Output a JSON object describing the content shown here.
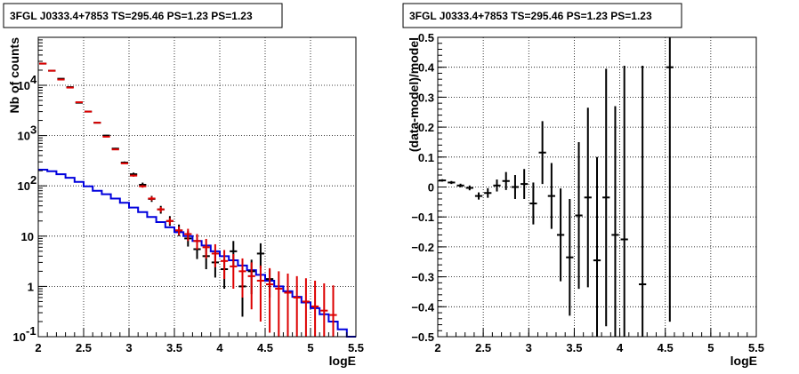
{
  "chart_data": [
    {
      "type": "scatter",
      "title": "3FGL J0333.4+7853 TS=295.46 PS=1.23 PS=1.23",
      "xlabel": "logE",
      "ylabel": "Nb of counts",
      "xlim": [
        2,
        5.5
      ],
      "ylim": [
        0.1,
        90000
      ],
      "yscale": "log",
      "grid": true,
      "x_ticks": [
        "2",
        "2.5",
        "3",
        "3.5",
        "4",
        "4.5",
        "5",
        "5.5"
      ],
      "y_ticks": [
        {
          "v": 0.1,
          "label": "10",
          "exp": "-1"
        },
        {
          "v": 1,
          "label": "1",
          "exp": ""
        },
        {
          "v": 10,
          "label": "10",
          "exp": ""
        },
        {
          "v": 100,
          "label": "10",
          "exp": "2"
        },
        {
          "v": 1000,
          "label": "10",
          "exp": "3"
        },
        {
          "v": 10000,
          "label": "10",
          "exp": "4"
        }
      ],
      "colors": {
        "data": "#000000",
        "model_points": "#dd0000",
        "model_histogram": "#0000dd"
      },
      "series": [
        {
          "style": "black-errorbars",
          "points": [
            {
              "x": 2.05,
              "y": 27000,
              "lo": 26700,
              "hi": 27300
            },
            {
              "x": 2.15,
              "y": 19500,
              "lo": 19200,
              "hi": 19800
            },
            {
              "x": 2.25,
              "y": 13500,
              "lo": 13300,
              "hi": 13700
            },
            {
              "x": 2.35,
              "y": 9200,
              "lo": 9050,
              "hi": 9350
            },
            {
              "x": 2.45,
              "y": 4500,
              "lo": 4420,
              "hi": 4580
            },
            {
              "x": 2.55,
              "y": 3000,
              "lo": 2940,
              "hi": 3060
            },
            {
              "x": 2.65,
              "y": 1800,
              "lo": 1760,
              "hi": 1840
            },
            {
              "x": 2.75,
              "y": 1000,
              "lo": 970,
              "hi": 1030
            },
            {
              "x": 2.85,
              "y": 550,
              "lo": 530,
              "hi": 570
            },
            {
              "x": 2.95,
              "y": 290,
              "lo": 275,
              "hi": 305
            },
            {
              "x": 3.05,
              "y": 170,
              "lo": 157,
              "hi": 183
            },
            {
              "x": 3.15,
              "y": 105,
              "lo": 95,
              "hi": 116
            },
            {
              "x": 3.25,
              "y": 55,
              "lo": 48,
              "hi": 63
            },
            {
              "x": 3.35,
              "y": 34,
              "lo": 28,
              "hi": 40
            },
            {
              "x": 3.45,
              "y": 20,
              "lo": 16,
              "hi": 25
            },
            {
              "x": 3.55,
              "y": 13,
              "lo": 10,
              "hi": 17
            },
            {
              "x": 3.65,
              "y": 9,
              "lo": 6.2,
              "hi": 12.5
            },
            {
              "x": 3.75,
              "y": 5.5,
              "lo": 3.5,
              "hi": 8.5
            },
            {
              "x": 3.85,
              "y": 4.0,
              "lo": 2.2,
              "hi": 6.5
            },
            {
              "x": 3.95,
              "y": 3.0,
              "lo": 1.5,
              "hi": 5.0
            },
            {
              "x": 4.05,
              "y": 2.2,
              "lo": 0.9,
              "hi": 3.6
            },
            {
              "x": 4.15,
              "y": 5.0,
              "lo": 2.6,
              "hi": 8.0
            },
            {
              "x": 4.25,
              "y": 1.0,
              "lo": 0.25,
              "hi": 2.2
            },
            {
              "x": 4.35,
              "y": 2.0,
              "lo": 0.7,
              "hi": 3.4
            },
            {
              "x": 4.45,
              "y": 4.5,
              "lo": 2.3,
              "hi": 7.2
            },
            {
              "x": 4.55,
              "y": 1.4,
              "lo": 0.6,
              "hi": 2.2
            }
          ]
        },
        {
          "style": "red-errorbars",
          "points": [
            {
              "x": 2.05,
              "y": 27000,
              "lo": 26800,
              "hi": 27200
            },
            {
              "x": 2.15,
              "y": 19500,
              "lo": 19300,
              "hi": 19700
            },
            {
              "x": 2.25,
              "y": 13000,
              "lo": 12900,
              "hi": 13100
            },
            {
              "x": 2.35,
              "y": 9000,
              "lo": 8900,
              "hi": 9100
            },
            {
              "x": 2.45,
              "y": 4600,
              "lo": 4550,
              "hi": 4650
            },
            {
              "x": 2.55,
              "y": 3000,
              "lo": 2960,
              "hi": 3040
            },
            {
              "x": 2.65,
              "y": 1800,
              "lo": 1780,
              "hi": 1820
            },
            {
              "x": 2.75,
              "y": 950,
              "lo": 935,
              "hi": 965
            },
            {
              "x": 2.85,
              "y": 530,
              "lo": 520,
              "hi": 540
            },
            {
              "x": 2.95,
              "y": 280,
              "lo": 272,
              "hi": 288
            },
            {
              "x": 3.05,
              "y": 160,
              "lo": 152,
              "hi": 168
            },
            {
              "x": 3.15,
              "y": 98,
              "lo": 92,
              "hi": 104
            },
            {
              "x": 3.25,
              "y": 56,
              "lo": 51,
              "hi": 61
            },
            {
              "x": 3.35,
              "y": 34,
              "lo": 30,
              "hi": 38
            },
            {
              "x": 3.45,
              "y": 20,
              "lo": 17,
              "hi": 23
            },
            {
              "x": 3.55,
              "y": 13,
              "lo": 10.5,
              "hi": 15.5
            },
            {
              "x": 3.65,
              "y": 11,
              "lo": 8,
              "hi": 14
            },
            {
              "x": 3.75,
              "y": 8,
              "lo": 5.4,
              "hi": 11
            },
            {
              "x": 3.85,
              "y": 6,
              "lo": 3.6,
              "hi": 8.8
            },
            {
              "x": 3.95,
              "y": 4.5,
              "lo": 2.4,
              "hi": 6.9
            },
            {
              "x": 4.05,
              "y": 3.2,
              "lo": 1.4,
              "hi": 5.3
            },
            {
              "x": 4.15,
              "y": 2.5,
              "lo": 0.9,
              "hi": 4.4
            },
            {
              "x": 4.25,
              "y": 2.0,
              "lo": 0.6,
              "hi": 3.6
            },
            {
              "x": 4.35,
              "y": 1.6,
              "lo": 0.35,
              "hi": 3.0
            },
            {
              "x": 4.45,
              "y": 1.3,
              "lo": 0.2,
              "hi": 2.6
            },
            {
              "x": 4.55,
              "y": 1.1,
              "lo": 0.12,
              "hi": 2.3
            },
            {
              "x": 4.65,
              "y": 0.9,
              "lo": 0.1,
              "hi": 2.0
            },
            {
              "x": 4.75,
              "y": 0.75,
              "lo": 0.1,
              "hi": 1.8
            },
            {
              "x": 4.85,
              "y": 0.6,
              "lo": 0.1,
              "hi": 1.6
            },
            {
              "x": 4.95,
              "y": 0.5,
              "lo": 0.1,
              "hi": 1.45
            },
            {
              "x": 5.05,
              "y": 0.4,
              "lo": 0.1,
              "hi": 1.3
            },
            {
              "x": 5.15,
              "y": 0.33,
              "lo": 0.1,
              "hi": 1.15
            },
            {
              "x": 5.25,
              "y": 0.27,
              "lo": 0.1,
              "hi": 1.05
            }
          ]
        },
        {
          "style": "blue-step-histogram",
          "bin_edges": [
            2.0,
            2.1,
            2.2,
            2.3,
            2.4,
            2.5,
            2.6,
            2.7,
            2.8,
            2.9,
            3.0,
            3.1,
            3.2,
            3.3,
            3.4,
            3.5,
            3.6,
            3.7,
            3.8,
            3.9,
            4.0,
            4.1,
            4.2,
            4.3,
            4.4,
            4.5,
            4.6,
            4.7,
            4.8,
            4.9,
            5.0,
            5.1,
            5.2,
            5.3,
            5.4,
            5.5
          ],
          "values": [
            210,
            195,
            170,
            145,
            120,
            98,
            80,
            68,
            56,
            46,
            37,
            30,
            24,
            19,
            15,
            12,
            10,
            8,
            6.5,
            5,
            4,
            3.3,
            2.6,
            2.1,
            1.7,
            1.3,
            1.0,
            0.8,
            0.62,
            0.48,
            0.37,
            0.28,
            0.2,
            0.14,
            0.1
          ]
        }
      ]
    },
    {
      "type": "scatter",
      "title": "3FGL J0333.4+7853 TS=295.46 PS=1.23 PS=1.23",
      "xlabel": "logE",
      "ylabel": "(data-model)/model",
      "xlim": [
        2,
        5.5
      ],
      "ylim": [
        -0.5,
        0.5
      ],
      "grid": true,
      "x_ticks": [
        "2",
        "2.5",
        "3",
        "3.5",
        "4",
        "4.5",
        "5",
        "5.5"
      ],
      "y_ticks": [
        "−0.5",
        "−0.4",
        "−0.3",
        "−0.2",
        "−0.1",
        "0",
        "0.1",
        "0.2",
        "0.3",
        "0.4",
        "0.5"
      ],
      "series": [
        {
          "style": "black-errorbars",
          "points": [
            {
              "x": 2.05,
              "y": 0.022,
              "err": 0.004
            },
            {
              "x": 2.15,
              "y": 0.015,
              "err": 0.005
            },
            {
              "x": 2.25,
              "y": 0.005,
              "err": 0.006
            },
            {
              "x": 2.35,
              "y": -0.003,
              "err": 0.008
            },
            {
              "x": 2.45,
              "y": -0.03,
              "err": 0.012
            },
            {
              "x": 2.55,
              "y": -0.02,
              "err": 0.016
            },
            {
              "x": 2.65,
              "y": 0.005,
              "err": 0.02
            },
            {
              "x": 2.75,
              "y": 0.02,
              "err": 0.03
            },
            {
              "x": 2.85,
              "y": 0.0,
              "err": 0.04
            },
            {
              "x": 2.95,
              "y": 0.01,
              "err": 0.05
            },
            {
              "x": 3.05,
              "y": -0.055,
              "err": 0.07
            },
            {
              "x": 3.15,
              "y": 0.115,
              "err": 0.105
            },
            {
              "x": 3.25,
              "y": -0.03,
              "err": 0.11
            },
            {
              "x": 3.35,
              "y": -0.16,
              "err": 0.155
            },
            {
              "x": 3.45,
              "y": -0.235,
              "err": 0.195
            },
            {
              "x": 3.55,
              "y": -0.095,
              "err": 0.245
            },
            {
              "x": 3.65,
              "y": -0.035,
              "err": 0.3
            },
            {
              "x": 3.75,
              "y": -0.245,
              "err": 0.345
            },
            {
              "x": 3.85,
              "y": -0.035,
              "err": 0.43
            },
            {
              "x": 3.95,
              "y": -0.16,
              "err": 0.43
            },
            {
              "x": 4.05,
              "y": -0.175,
              "err": 0.58
            },
            {
              "x": 4.25,
              "y": -0.325,
              "err": 0.73
            },
            {
              "x": 4.55,
              "y": 0.4,
              "err": 0.85
            }
          ]
        }
      ]
    }
  ]
}
